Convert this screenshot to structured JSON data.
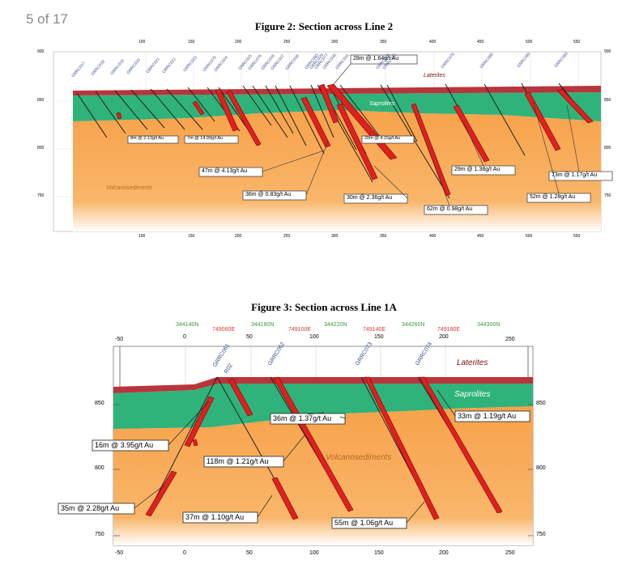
{
  "page": {
    "counter": "5 of 17"
  },
  "figure2": {
    "title": "Figure 2: Section across Line 2",
    "x_ticks": [
      "100",
      "150",
      "200",
      "250",
      "300",
      "350",
      "400",
      "450",
      "500",
      "550"
    ],
    "y_ticks": [
      "900",
      "850",
      "800",
      "750"
    ],
    "layers": {
      "laterites": "Laterites",
      "saprolites": "Saprolites",
      "volcanosediments": "Volcanosediments"
    },
    "holes": [
      "GRRC017",
      "GRRC018",
      "GRRC019",
      "GRRC020",
      "GRRC021",
      "GRRC022",
      "GRRC023",
      "GRRC075",
      "GRRC024",
      "GRRC025",
      "GRRC076",
      "GRRC026",
      "GRRC027",
      "GRRC028",
      "GRRC083",
      "GRRC029",
      "GRRC077",
      "GRRC030",
      "GRRC031",
      "GRRC078",
      "GRRC032",
      "GRRC079",
      "GRRC080",
      "GRRC081",
      "GRRC082"
    ],
    "intercepts": [
      "28m @ 1.64g/t Au",
      "8m @ 2.13g/t Au",
      "7m @ 14.99g/t Au",
      "20m @ 4.15g/t Au",
      "47m @ 4.13g/t Au",
      "36m @ 0.83g/t Au",
      "30m @ 2.36g/t Au",
      "62m @ 0.98g/t Au",
      "29m @ 1.38g/t Au",
      "73m @ 1.17g/t Au",
      "52m @ 1.28g/t Au"
    ]
  },
  "figure3": {
    "title": "Figure 3: Section across Line 1A",
    "northings": [
      "344140N",
      "344180N",
      "344220N",
      "344260N",
      "344300N"
    ],
    "eastings": [
      "749060E",
      "749100E",
      "749140E",
      "749180E"
    ],
    "x_ticks": [
      "-50",
      "0",
      "50",
      "100",
      "150",
      "200",
      "250"
    ],
    "y_ticks": [
      "850",
      "800",
      "750"
    ],
    "layers": {
      "laterites": "Laterites",
      "saprolites": "Saprolites",
      "volcanosediments": "Volcanosediments"
    },
    "holes": [
      "GRRC061",
      "R02",
      "GRRC062",
      "GRRC073",
      "GRRC074"
    ],
    "intercepts": [
      "36m @ 1.37g/t Au",
      "33m @ 1.19g/t Au",
      "16m @ 3.95g/t Au",
      "118m @ 1.21g/t Au",
      "35m @ 2.28g/t Au",
      "37m @ 1.10g/t Au",
      "55m @ 1.06g/t Au"
    ]
  }
}
